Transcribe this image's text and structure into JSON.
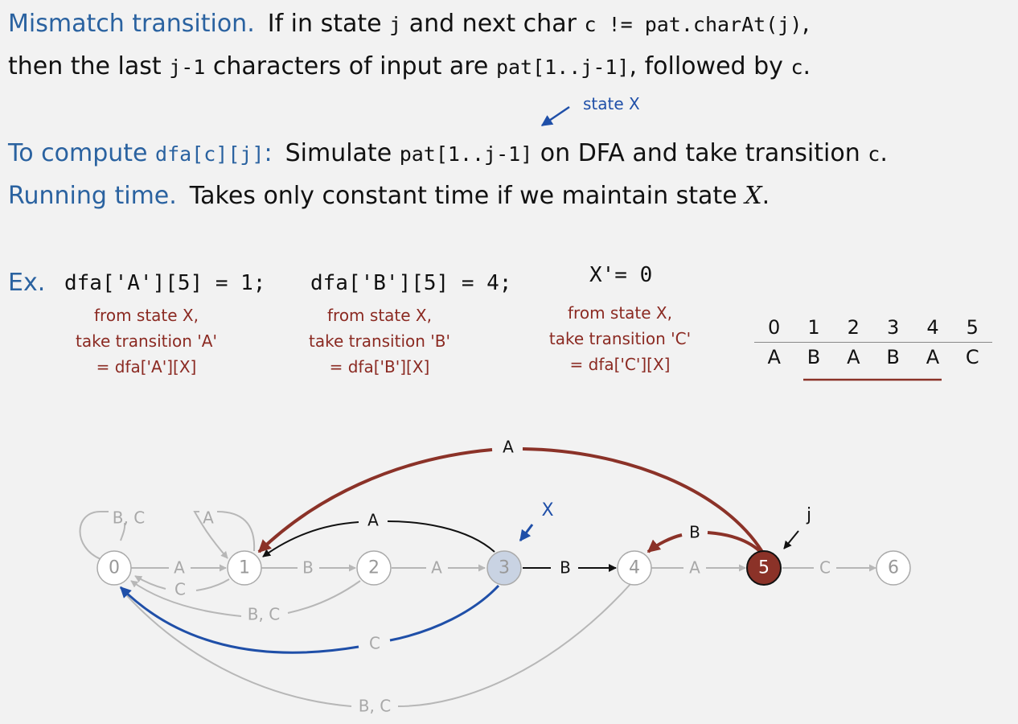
{
  "text": {
    "line1_label": "Mismatch transition.",
    "line1_a": "If in state ",
    "line1_j": "j",
    "line1_b": " and next char ",
    "line1_cond": "c != pat.charAt(j)",
    "line1_c": ",",
    "line2_a": "then the last ",
    "line2_j1": "j-1",
    "line2_b": " characters of input are ",
    "line2_pat": "pat[1..j-1]",
    "line2_c": ", followed by ",
    "line2_cc": "c",
    "line2_d": ".",
    "state_x_note": "state X",
    "line3_label": "To compute ",
    "line3_dfa": "dfa[c][j]",
    "line3_colon": ":",
    "line3_a": "Simulate ",
    "line3_pat": "pat[1..j-1]",
    "line3_b": " on DFA and take transition ",
    "line3_cc": "c",
    "line3_d": ".",
    "line4_label": "Running time.",
    "line4_a": "Takes only constant time if we maintain state ",
    "line4_x": "X",
    "line4_d": ".",
    "ex_label": "Ex.",
    "code_a": "dfa['A'][5] = 1;",
    "code_b": "dfa['B'][5] = 4;",
    "code_x": "X'= 0",
    "note_a": [
      "from state X,",
      "take transition 'A'",
      "= dfa['A'][X]"
    ],
    "note_b": [
      "from state X,",
      "take transition 'B'",
      "= dfa['B'][X]"
    ],
    "note_c": [
      "from state X,",
      "take transition 'C'",
      "= dfa['C'][X]"
    ]
  },
  "pattern_table": {
    "indices": [
      "0",
      "1",
      "2",
      "3",
      "4",
      "5"
    ],
    "chars": [
      "A",
      "B",
      "A",
      "B",
      "A",
      "C"
    ]
  },
  "colors": {
    "blue": "#1f4fa8",
    "red": "#8b3228",
    "gray": "#b7b7b7",
    "x_state_fill": "#c9d3e3"
  },
  "dfa": {
    "states": [
      "0",
      "1",
      "2",
      "3",
      "4",
      "5",
      "6"
    ],
    "x_label": "X",
    "j_label": "j",
    "edges": {
      "self0": "B, C",
      "self1": "A",
      "e01": "A",
      "e12": "B",
      "e23": "A",
      "e34": "B",
      "e45": "A",
      "e56": "C",
      "e10": "C",
      "e20": "B, C",
      "e30": "C",
      "e40": "B, C",
      "e31": "A",
      "e51": "A",
      "e54": "B"
    }
  }
}
